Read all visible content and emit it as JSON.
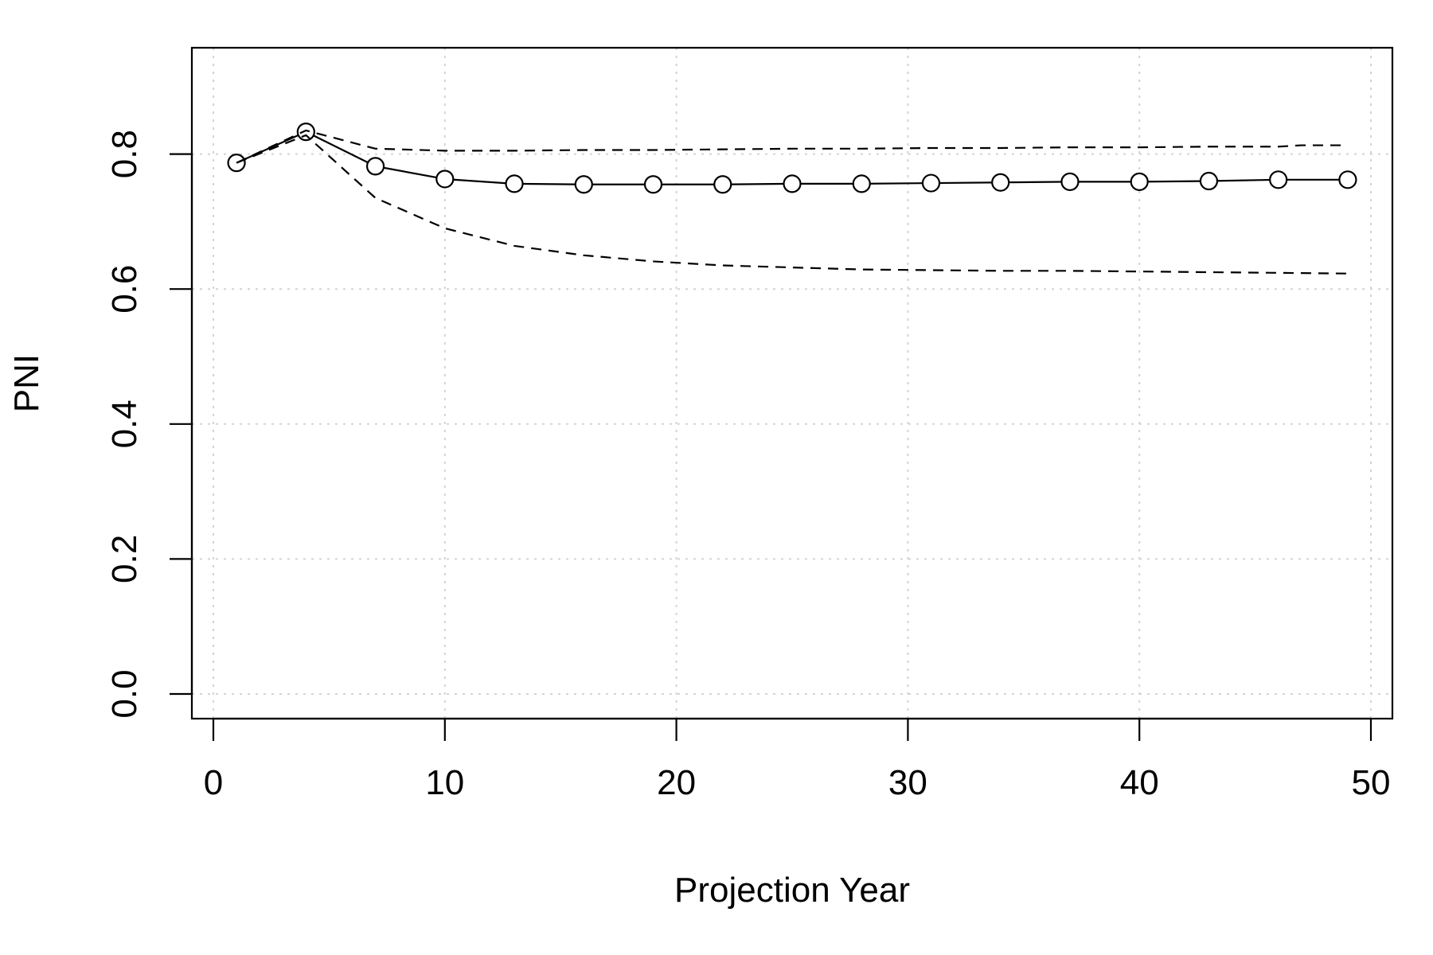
{
  "chart_data": {
    "type": "line",
    "title": "",
    "xlabel": "Projection Year",
    "ylabel": "PNI",
    "xlim": [
      0,
      50
    ],
    "ylim": [
      0.0,
      0.9
    ],
    "xticks": [
      0,
      10,
      20,
      30,
      40,
      50
    ],
    "yticks": [
      0.0,
      0.2,
      0.4,
      0.6,
      0.8
    ],
    "ytick_labels": [
      "0.0",
      "0.2",
      "0.4",
      "0.6",
      "0.8"
    ],
    "grid": true,
    "legend": "none",
    "series": [
      {
        "style": "solid-with-circles",
        "x": [
          1,
          4,
          7,
          10,
          13,
          16,
          19,
          22,
          25,
          28,
          31,
          34,
          37,
          40,
          43,
          46,
          49
        ],
        "values": [
          0.787,
          0.833,
          0.782,
          0.763,
          0.756,
          0.755,
          0.755,
          0.755,
          0.756,
          0.756,
          0.757,
          0.758,
          0.759,
          0.759,
          0.76,
          0.762,
          0.762
        ]
      },
      {
        "style": "dashed",
        "x": [
          1,
          4,
          7,
          10,
          13,
          16,
          19,
          22,
          25,
          28,
          31,
          34,
          37,
          40,
          43,
          46,
          47,
          49
        ],
        "values": [
          0.787,
          0.835,
          0.808,
          0.805,
          0.805,
          0.806,
          0.806,
          0.807,
          0.808,
          0.808,
          0.809,
          0.809,
          0.81,
          0.81,
          0.811,
          0.811,
          0.813,
          0.813
        ]
      },
      {
        "style": "dashed",
        "x": [
          1,
          4,
          7,
          10,
          13,
          16,
          19,
          22,
          25,
          28,
          31,
          34,
          37,
          40,
          43,
          46,
          49
        ],
        "values": [
          0.787,
          0.828,
          0.735,
          0.69,
          0.664,
          0.65,
          0.641,
          0.635,
          0.632,
          0.629,
          0.628,
          0.627,
          0.627,
          0.626,
          0.625,
          0.624,
          0.623
        ]
      }
    ]
  }
}
